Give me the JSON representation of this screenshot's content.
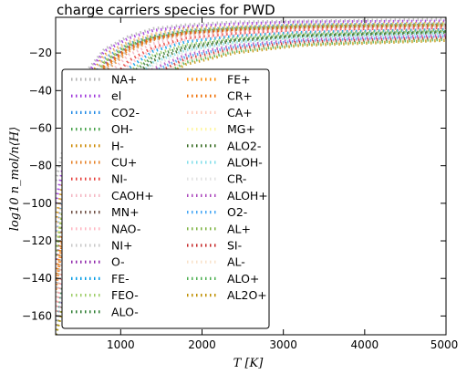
{
  "chart_data": {
    "type": "line",
    "title": "charge carriers species for PWD",
    "xlabel": "T [K]",
    "ylabel": "log10 n_mol/n⟨H⟩",
    "xlim": [
      200,
      5000
    ],
    "ylim": [
      -170,
      -1
    ],
    "xticks": [
      1000,
      2000,
      3000,
      4000,
      5000
    ],
    "yticks": [
      -20,
      -40,
      -60,
      -80,
      -100,
      -120,
      -140,
      -160
    ],
    "xtick_labels": [
      "1000",
      "2000",
      "3000",
      "4000",
      "5000"
    ],
    "ytick_labels": [
      "−20",
      "−40",
      "−60",
      "−80",
      "−100",
      "−120",
      "−140",
      "−160"
    ],
    "legend_position": "center-left",
    "legend_columns": 2,
    "grid": false,
    "series": [
      {
        "name": "NA+",
        "color": "#b0b0b0",
        "values": [
          -88,
          -34,
          -18,
          -11,
          -7,
          -5,
          -3.5,
          -3,
          -2
        ]
      },
      {
        "name": "el",
        "color": "#9b30d9",
        "values": [
          -100,
          -36,
          -19,
          -12,
          -8,
          -6,
          -4.5,
          -3.5,
          -3
        ]
      },
      {
        "name": "CO2-",
        "color": "#1e88e5",
        "values": [
          -120,
          -44,
          -23,
          -15,
          -11,
          -8,
          -6.5,
          -5,
          -4.5
        ]
      },
      {
        "name": "OH-",
        "color": "#43a047",
        "values": [
          -130,
          -48,
          -25,
          -16,
          -12,
          -9,
          -7,
          -6,
          -5
        ]
      },
      {
        "name": "H-",
        "color": "#cc8800",
        "values": [
          -110,
          -40,
          -21,
          -14,
          -10,
          -7,
          -6,
          -5,
          -4
        ]
      },
      {
        "name": "CU+",
        "color": "#e67e22",
        "values": [
          -155,
          -58,
          -30,
          -19,
          -13,
          -10,
          -8,
          -6.5,
          -5.5
        ]
      },
      {
        "name": "NI-",
        "color": "#e53935",
        "values": [
          -165,
          -70,
          -38,
          -24,
          -17,
          -12,
          -9.5,
          -7.5,
          -6.5
        ]
      },
      {
        "name": "CAOH+",
        "color": "#f4b6c2",
        "values": [
          -160,
          -62,
          -33,
          -21,
          -15,
          -11,
          -8.5,
          -7,
          -6
        ]
      },
      {
        "name": "MN+",
        "color": "#6d4c41",
        "values": [
          -145,
          -53,
          -27,
          -17,
          -12,
          -9,
          -7.2,
          -6,
          -5
        ]
      },
      {
        "name": "NAO-",
        "color": "#ffb6c1",
        "values": [
          -170,
          -74,
          -41,
          -26,
          -18,
          -13,
          -10.5,
          -8.5,
          -7
        ]
      },
      {
        "name": "NI+",
        "color": "#c8c8c8",
        "values": [
          -150,
          -56,
          -29,
          -18,
          -13,
          -9.5,
          -7.7,
          -6.4,
          -5.5
        ]
      },
      {
        "name": "O-",
        "color": "#8e24aa",
        "values": [
          -135,
          -50,
          -26,
          -17,
          -12,
          -9.2,
          -7.4,
          -6.1,
          -5.2
        ]
      },
      {
        "name": "FE-",
        "color": "#039be5",
        "values": [
          -170,
          -78,
          -44,
          -28,
          -19,
          -14,
          -11,
          -9,
          -7.5
        ]
      },
      {
        "name": "FEO-",
        "color": "#9ccc65",
        "values": [
          -170,
          -82,
          -47,
          -30,
          -21,
          -15.5,
          -12,
          -9.8,
          -8
        ]
      },
      {
        "name": "ALO-",
        "color": "#2e7d32",
        "values": [
          -170,
          -86,
          -50,
          -32,
          -22,
          -16.5,
          -12.8,
          -10.4,
          -8.6
        ]
      },
      {
        "name": "FE+",
        "color": "#fb8c00",
        "values": [
          -140,
          -52,
          -27,
          -17,
          -12,
          -9,
          -7.3,
          -6,
          -5
        ]
      },
      {
        "name": "CR+",
        "color": "#ef6c00",
        "values": [
          -146,
          -54,
          -28,
          -18,
          -12.5,
          -9.3,
          -7.5,
          -6.2,
          -5.3
        ]
      },
      {
        "name": "CA+",
        "color": "#ffccbc",
        "values": [
          -118,
          -43,
          -22,
          -14,
          -10,
          -7.5,
          -6,
          -5,
          -4.3
        ]
      },
      {
        "name": "MG+",
        "color": "#fff59d",
        "values": [
          -125,
          -46,
          -24,
          -15,
          -11,
          -8,
          -6.5,
          -5.5,
          -4.6
        ]
      },
      {
        "name": "ALO2-",
        "color": "#33691e",
        "values": [
          -170,
          -90,
          -53,
          -34,
          -24,
          -17.5,
          -13.5,
          -11,
          -9
        ]
      },
      {
        "name": "ALOH-",
        "color": "#80deea",
        "values": [
          -170,
          -94,
          -56,
          -36,
          -25,
          -18.5,
          -14.3,
          -11.6,
          -9.5
        ]
      },
      {
        "name": "CR-",
        "color": "#e0e0e0",
        "values": [
          -170,
          -98,
          -59,
          -38,
          -26.5,
          -19.5,
          -15,
          -12.2,
          -10
        ]
      },
      {
        "name": "ALOH+",
        "color": "#ab47bc",
        "values": [
          -170,
          -104,
          -63,
          -41,
          -28.5,
          -21,
          -16,
          -13,
          -10.6
        ]
      },
      {
        "name": "O2-",
        "color": "#42a5f5",
        "values": [
          -170,
          -108,
          -66,
          -43,
          -30,
          -22,
          -16.8,
          -13.6,
          -11.2
        ]
      },
      {
        "name": "AL+",
        "color": "#7cb342",
        "values": [
          -128,
          -47,
          -24.5,
          -15.5,
          -11.2,
          -8.3,
          -6.7,
          -5.6,
          -4.8
        ]
      },
      {
        "name": "SI-",
        "color": "#c62828",
        "values": [
          -170,
          -112,
          -69,
          -45,
          -31.5,
          -23,
          -17.6,
          -14.2,
          -11.8
        ]
      },
      {
        "name": "AL-",
        "color": "#f8e1c8",
        "values": [
          -170,
          -116,
          -72,
          -47,
          -33,
          -24,
          -18.4,
          -14.8,
          -12.3
        ]
      },
      {
        "name": "ALO+",
        "color": "#4caf50",
        "values": [
          -170,
          -120,
          -75,
          -49,
          -34.5,
          -25,
          -19.2,
          -15.4,
          -12.8
        ]
      },
      {
        "name": "AL2O+",
        "color": "#bf8f00",
        "values": [
          -170,
          -124,
          -78,
          -51,
          -36,
          -26,
          -20,
          -16,
          -13.3
        ]
      }
    ],
    "x": [
      200,
      500,
      800,
      1100,
      1400,
      1800,
      2400,
      3200,
      5000
    ]
  }
}
